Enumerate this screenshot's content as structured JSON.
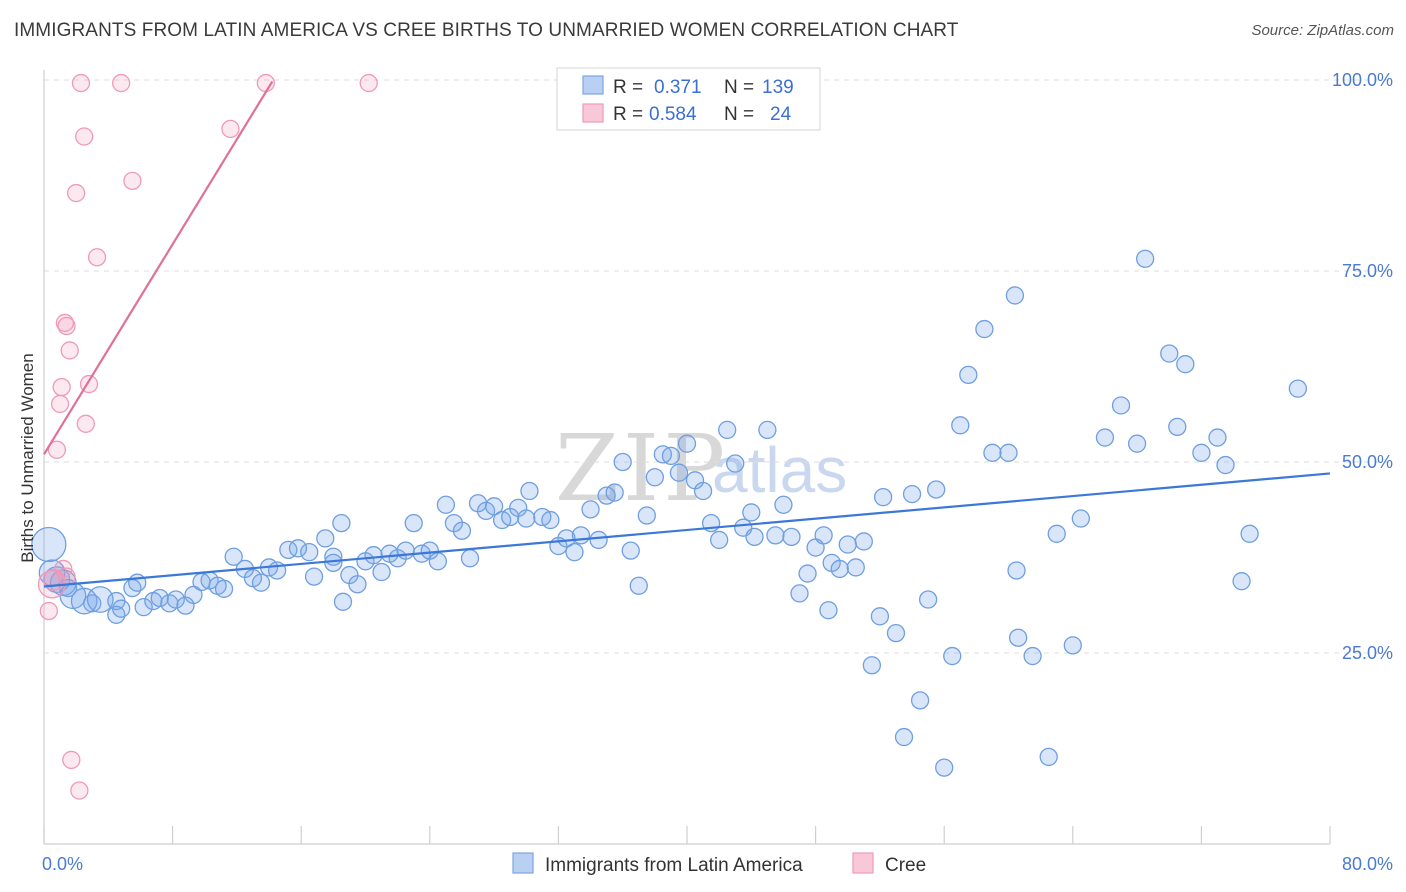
{
  "title": "IMMIGRANTS FROM LATIN AMERICA VS CREE BIRTHS TO UNMARRIED WOMEN CORRELATION CHART",
  "source": "Source: ZipAtlas.com",
  "watermark": {
    "zip": "ZIP",
    "atlas": "atlas"
  },
  "colors": {
    "blue": "#3b78d8",
    "blue_fill": "rgba(120,165,232,0.28)",
    "blue_stroke": "#6f9fe0",
    "pink": "#e0709a",
    "pink_fill": "rgba(240,150,180,0.22)",
    "pink_stroke": "#ee9ab8",
    "grid": "#dedede",
    "tick_text": "#4a7bd0"
  },
  "legend_top": {
    "rows": [
      {
        "r_label": "R =",
        "r_value": "0.371",
        "n_label": "N =",
        "n_value": "139"
      },
      {
        "r_label": "R =",
        "r_value": "0.584",
        "n_label": "N =",
        "n_value": "24"
      }
    ]
  },
  "chart_data": {
    "type": "scatter",
    "title": "IMMIGRANTS FROM LATIN AMERICA VS CREE BIRTHS TO UNMARRIED WOMEN CORRELATION CHART",
    "xlabel": "",
    "ylabel": "Births to Unmarried Women",
    "xlim": [
      0,
      80
    ],
    "ylim": [
      0,
      100
    ],
    "x_tick_labels": [
      {
        "value": 0,
        "label": "0.0%"
      },
      {
        "value": 80,
        "label": "80.0%"
      }
    ],
    "y_tick_labels": [
      {
        "value": 25,
        "label": "25.0%"
      },
      {
        "value": 50,
        "label": "50.0%"
      },
      {
        "value": 75,
        "label": "75.0%"
      },
      {
        "value": 100,
        "label": "100.0%"
      }
    ],
    "x_minor_ticks": [
      0,
      8,
      16,
      24,
      32,
      40,
      48,
      56,
      64,
      72,
      80
    ],
    "y_gridlines": [
      25,
      50,
      75,
      100
    ],
    "legend": [
      "Immigrants from Latin America",
      "Cree"
    ],
    "series": [
      {
        "name": "Immigrants from Latin America",
        "color": "blue",
        "r": 0.371,
        "n": 139,
        "trend": {
          "x0": 0,
          "y0": 33.7,
          "x1": 80,
          "y1": 48.5
        },
        "points": [
          [
            0.3,
            39.2,
            2
          ],
          [
            0.5,
            35.5,
            1.5
          ],
          [
            0.8,
            34.6,
            1.5
          ],
          [
            1.2,
            34.2,
            1.5
          ],
          [
            1.5,
            33.5,
            1
          ],
          [
            1.8,
            32.5,
            1.5
          ],
          [
            2.5,
            31.8,
            1.5
          ],
          [
            3.0,
            31.5,
            1
          ],
          [
            3.5,
            32.0,
            1.5
          ],
          [
            4.5,
            31.8,
            1
          ],
          [
            4.5,
            30.0,
            1
          ],
          [
            4.8,
            30.8,
            1
          ],
          [
            5.5,
            33.5,
            1
          ],
          [
            5.8,
            34.2,
            1
          ],
          [
            6.2,
            31.0,
            1
          ],
          [
            6.8,
            31.8,
            1
          ],
          [
            7.2,
            32.2,
            1
          ],
          [
            7.8,
            31.5,
            1
          ],
          [
            8.2,
            32.0,
            1
          ],
          [
            8.8,
            31.2,
            1
          ],
          [
            9.3,
            32.6,
            1
          ],
          [
            9.8,
            34.3,
            1
          ],
          [
            10.3,
            34.5,
            1
          ],
          [
            10.8,
            33.8,
            1
          ],
          [
            11.2,
            33.4,
            1
          ],
          [
            11.8,
            37.6,
            1
          ],
          [
            12.5,
            36.0,
            1
          ],
          [
            13.0,
            34.8,
            1
          ],
          [
            13.5,
            34.2,
            1
          ],
          [
            14.0,
            36.2,
            1
          ],
          [
            14.5,
            35.8,
            1
          ],
          [
            15.2,
            38.5,
            1
          ],
          [
            15.8,
            38.7,
            1
          ],
          [
            16.5,
            38.2,
            1
          ],
          [
            16.8,
            35.0,
            1
          ],
          [
            17.5,
            40.0,
            1
          ],
          [
            18.0,
            37.6,
            1
          ],
          [
            18.0,
            36.8,
            1
          ],
          [
            18.5,
            42.0,
            1
          ],
          [
            18.6,
            31.7,
            1
          ],
          [
            19.0,
            35.2,
            1
          ],
          [
            19.5,
            34.0,
            1
          ],
          [
            20.0,
            37.0,
            1
          ],
          [
            20.5,
            37.8,
            1
          ],
          [
            21.0,
            35.6,
            1
          ],
          [
            21.5,
            38.0,
            1
          ],
          [
            22.0,
            37.4,
            1
          ],
          [
            22.5,
            38.4,
            1
          ],
          [
            23.0,
            42.0,
            1
          ],
          [
            23.5,
            38.0,
            1
          ],
          [
            24.0,
            38.4,
            1
          ],
          [
            24.5,
            37.0,
            1
          ],
          [
            25.0,
            44.4,
            1
          ],
          [
            25.5,
            42.0,
            1
          ],
          [
            26.0,
            41.0,
            1
          ],
          [
            26.5,
            37.4,
            1
          ],
          [
            27.0,
            44.6,
            1
          ],
          [
            27.5,
            43.6,
            1
          ],
          [
            28.0,
            44.2,
            1
          ],
          [
            28.5,
            42.4,
            1
          ],
          [
            29.0,
            42.8,
            1
          ],
          [
            29.5,
            44.0,
            1
          ],
          [
            30.0,
            42.6,
            1
          ],
          [
            30.2,
            46.2,
            1
          ],
          [
            31.0,
            42.8,
            1
          ],
          [
            31.5,
            42.4,
            1
          ],
          [
            32.0,
            39.0,
            1
          ],
          [
            32.5,
            40.0,
            1
          ],
          [
            33.0,
            38.2,
            1
          ],
          [
            33.4,
            40.4,
            1
          ],
          [
            34.0,
            43.8,
            1
          ],
          [
            34.5,
            39.8,
            1
          ],
          [
            35.0,
            45.6,
            1
          ],
          [
            35.5,
            46.0,
            1
          ],
          [
            36.0,
            50.0,
            1
          ],
          [
            36.5,
            38.4,
            1
          ],
          [
            37.0,
            33.8,
            1
          ],
          [
            37.5,
            43.0,
            1
          ],
          [
            38.0,
            48.0,
            1
          ],
          [
            38.5,
            51.0,
            1
          ],
          [
            39.0,
            50.8,
            1
          ],
          [
            39.5,
            48.6,
            1
          ],
          [
            40.0,
            52.4,
            1
          ],
          [
            40.5,
            47.6,
            1
          ],
          [
            41.0,
            46.2,
            1
          ],
          [
            41.5,
            42.0,
            1
          ],
          [
            42.0,
            39.8,
            1
          ],
          [
            42.5,
            54.2,
            1
          ],
          [
            43.0,
            49.8,
            1
          ],
          [
            43.5,
            41.4,
            1
          ],
          [
            44.0,
            43.4,
            1
          ],
          [
            44.2,
            40.2,
            1
          ],
          [
            45.0,
            54.2,
            1
          ],
          [
            45.5,
            40.4,
            1
          ],
          [
            46.0,
            44.4,
            1
          ],
          [
            46.5,
            40.2,
            1
          ],
          [
            47.0,
            32.8,
            1
          ],
          [
            47.5,
            35.4,
            1
          ],
          [
            48.0,
            38.8,
            1
          ],
          [
            48.5,
            40.4,
            1
          ],
          [
            48.8,
            30.6,
            1
          ],
          [
            49.0,
            36.8,
            1
          ],
          [
            49.5,
            36.0,
            1
          ],
          [
            50.0,
            39.2,
            1
          ],
          [
            50.5,
            36.2,
            1
          ],
          [
            51.0,
            39.6,
            1
          ],
          [
            51.5,
            23.4,
            1
          ],
          [
            52.0,
            29.8,
            1
          ],
          [
            52.2,
            45.4,
            1
          ],
          [
            53.0,
            27.6,
            1
          ],
          [
            53.5,
            14.0,
            1
          ],
          [
            54.0,
            45.8,
            1
          ],
          [
            54.5,
            18.8,
            1
          ],
          [
            55.0,
            32.0,
            1
          ],
          [
            55.5,
            46.4,
            1
          ],
          [
            56.0,
            10.0,
            1
          ],
          [
            56.5,
            24.6,
            1
          ],
          [
            57.0,
            54.8,
            1
          ],
          [
            57.5,
            61.4,
            1
          ],
          [
            58.5,
            67.4,
            1
          ],
          [
            59.0,
            51.2,
            1
          ],
          [
            60.0,
            51.2,
            1
          ],
          [
            60.4,
            71.8,
            1
          ],
          [
            60.5,
            35.8,
            1
          ],
          [
            60.6,
            27.0,
            1
          ],
          [
            61.5,
            24.6,
            1
          ],
          [
            62.5,
            11.4,
            1
          ],
          [
            63.0,
            40.6,
            1
          ],
          [
            64.0,
            26.0,
            1
          ],
          [
            64.5,
            42.6,
            1
          ],
          [
            66.0,
            53.2,
            1
          ],
          [
            67.0,
            57.4,
            1
          ],
          [
            68.0,
            52.4,
            1
          ],
          [
            68.5,
            76.6,
            1
          ],
          [
            70.0,
            64.2,
            1
          ],
          [
            70.5,
            54.6,
            1
          ],
          [
            71.0,
            62.8,
            1
          ],
          [
            72.0,
            51.2,
            1
          ],
          [
            73.0,
            53.2,
            1
          ],
          [
            73.5,
            49.6,
            1
          ],
          [
            74.5,
            34.4,
            1
          ],
          [
            75.0,
            40.6,
            1
          ],
          [
            78.0,
            59.6,
            1
          ]
        ]
      },
      {
        "name": "Cree",
        "color": "pink",
        "r": 0.584,
        "n": 24,
        "trend": {
          "x0": 0,
          "y0": 51.0,
          "x1": 14.2,
          "y1": 99.8
        },
        "points": [
          [
            0.3,
            30.5,
            1
          ],
          [
            0.5,
            34.0,
            1.6
          ],
          [
            0.6,
            34.6,
            1.2
          ],
          [
            0.8,
            51.6,
            1
          ],
          [
            1.0,
            57.6,
            1
          ],
          [
            1.1,
            59.8,
            1
          ],
          [
            1.3,
            68.2,
            1
          ],
          [
            1.4,
            67.8,
            1
          ],
          [
            1.4,
            35.0,
            1
          ],
          [
            1.6,
            64.6,
            1
          ],
          [
            1.7,
            11.0,
            1
          ],
          [
            2.0,
            85.2,
            1
          ],
          [
            2.2,
            7.0,
            1
          ],
          [
            2.3,
            99.6,
            1
          ],
          [
            2.5,
            92.6,
            1
          ],
          [
            2.6,
            55.0,
            1
          ],
          [
            2.8,
            60.2,
            1
          ],
          [
            3.3,
            76.8,
            1
          ],
          [
            4.8,
            99.6,
            1
          ],
          [
            5.5,
            86.8,
            1
          ],
          [
            11.6,
            93.6,
            1
          ],
          [
            13.8,
            99.6,
            1
          ],
          [
            20.2,
            99.6,
            1
          ],
          [
            1.2,
            36.0,
            1
          ]
        ]
      }
    ]
  }
}
